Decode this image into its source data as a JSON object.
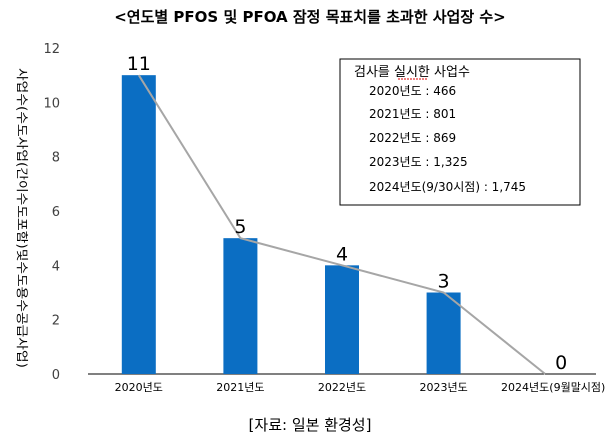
{
  "chart_data": {
    "type": "bar",
    "title": "<연도별 PFOS 및 PFOA 잠정 목표치를 초과한 사업장 수>",
    "ylabel": "사업수(수도사업(간이수도포함)및수도용수공급사업)",
    "xlabel": "",
    "categories": [
      "2020년도",
      "2021년도",
      "2022년도",
      "2023년도",
      "2024년도(9월말시점)"
    ],
    "values": [
      11,
      5,
      4,
      3,
      0
    ],
    "data_labels": [
      "11",
      "5",
      "4",
      "3",
      "0"
    ],
    "ylim": [
      0,
      12
    ],
    "yticks": [
      "0",
      "2",
      "4",
      "6",
      "8",
      "10",
      "12"
    ],
    "grid": false,
    "bar_color": "#0B6EC3",
    "line_color": "#A6A6A6",
    "overlay_line": true,
    "legend_box": {
      "title": "검사를 실시한 사업수",
      "rows": [
        "2020년도 : 466",
        "2021년도 : 801",
        "2022년도 : 869",
        "2023년도 : 1,325",
        "2024년도(9/30시점) : 1,745"
      ],
      "placement": "top-right"
    },
    "source": "[자료: 일본 환경성]"
  }
}
